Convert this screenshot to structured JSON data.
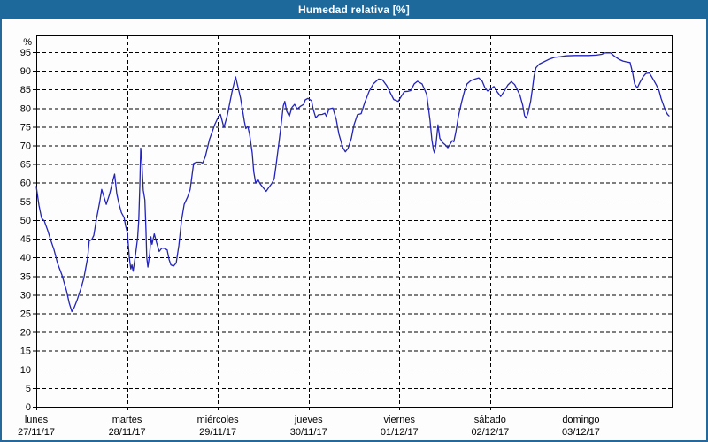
{
  "window": {
    "title": "Humedad relativa [%]"
  },
  "colors": {
    "header_bg": "#1e699c",
    "header_text": "#ffffff",
    "window_border": "#26689a",
    "plot_background": "#fcfdfc",
    "axis": "#000000",
    "grid": "#000000",
    "line": "#2323b8",
    "label_text": "#000000"
  },
  "chart_data": {
    "type": "line",
    "title": "Humedad relativa [%]",
    "ylabel": "%",
    "ylim": [
      0,
      99.5
    ],
    "yticks": [
      0,
      5,
      10,
      15,
      20,
      25,
      30,
      35,
      40,
      45,
      50,
      55,
      60,
      65,
      70,
      75,
      80,
      85,
      90,
      95
    ],
    "grid": true,
    "x_unit": "hours_from_monday_00",
    "xlim": [
      0,
      168
    ],
    "day_tick_hours": [
      0,
      24,
      48,
      72,
      96,
      120,
      144
    ],
    "days": [
      {
        "name": "lunes",
        "date": "27/11/17"
      },
      {
        "name": "martes",
        "date": "28/11/17"
      },
      {
        "name": "miércoles",
        "date": "29/11/17"
      },
      {
        "name": "jueves",
        "date": "30/11/17"
      },
      {
        "name": "viernes",
        "date": "01/12/17"
      },
      {
        "name": "sábado",
        "date": "02/12/17"
      },
      {
        "name": "domingo",
        "date": "03/12/17"
      }
    ],
    "series": [
      {
        "name": "Humedad relativa",
        "color": "#2323b8",
        "points": [
          [
            0,
            59
          ],
          [
            0.7,
            54
          ],
          [
            1.4,
            50.5
          ],
          [
            2.1,
            49.8
          ],
          [
            3,
            47.3
          ],
          [
            3.7,
            45
          ],
          [
            4.7,
            42
          ],
          [
            5.6,
            38.5
          ],
          [
            6.8,
            35.2
          ],
          [
            8,
            31
          ],
          [
            8.7,
            27.8
          ],
          [
            9.4,
            25.5
          ],
          [
            10,
            26.5
          ],
          [
            10.8,
            28.6
          ],
          [
            11.9,
            32
          ],
          [
            12.6,
            34.5
          ],
          [
            13.6,
            40
          ],
          [
            14,
            44.4
          ],
          [
            14.7,
            44.8
          ],
          [
            15.2,
            45.9
          ],
          [
            15.9,
            50.3
          ],
          [
            16.8,
            55
          ],
          [
            17.3,
            58.2
          ],
          [
            18.5,
            54.2
          ],
          [
            19.4,
            57
          ],
          [
            20.1,
            60
          ],
          [
            20.7,
            62.3
          ],
          [
            21.3,
            57
          ],
          [
            21.8,
            54.6
          ],
          [
            22.5,
            52
          ],
          [
            23.2,
            50.7
          ],
          [
            23.6,
            48.5
          ],
          [
            24.1,
            46.5
          ],
          [
            24.6,
            40
          ],
          [
            25,
            36.9
          ],
          [
            25.3,
            38
          ],
          [
            25.6,
            36.3
          ],
          [
            26.2,
            40.5
          ],
          [
            26.8,
            45.2
          ],
          [
            27.1,
            50
          ],
          [
            27.4,
            60
          ],
          [
            27.6,
            69.3
          ],
          [
            27.9,
            66
          ],
          [
            28.3,
            58
          ],
          [
            28.7,
            55.4
          ],
          [
            29,
            47.5
          ],
          [
            29.2,
            40
          ],
          [
            29.5,
            37.4
          ],
          [
            30,
            41
          ],
          [
            30.3,
            45.5
          ],
          [
            30.6,
            43.5
          ],
          [
            31.2,
            46.3
          ],
          [
            31.8,
            44
          ],
          [
            32.5,
            41.6
          ],
          [
            33.2,
            42.5
          ],
          [
            33.9,
            42.4
          ],
          [
            34.6,
            42
          ],
          [
            35.1,
            39.5
          ],
          [
            35.6,
            38
          ],
          [
            36.3,
            37.7
          ],
          [
            37,
            38.5
          ],
          [
            37.7,
            43.2
          ],
          [
            38.4,
            49.9
          ],
          [
            39.1,
            54.2
          ],
          [
            40,
            56.2
          ],
          [
            40.7,
            58.2
          ],
          [
            41.6,
            65.2
          ],
          [
            42.3,
            65.5
          ],
          [
            43.5,
            65.5
          ],
          [
            44,
            65.3
          ],
          [
            44.7,
            67
          ],
          [
            45.8,
            71.6
          ],
          [
            47.2,
            75.6
          ],
          [
            48.2,
            77.8
          ],
          [
            48.7,
            78.3
          ],
          [
            49.6,
            74.8
          ],
          [
            50.5,
            78
          ],
          [
            51.7,
            84.2
          ],
          [
            52.7,
            88.4
          ],
          [
            54,
            82.7
          ],
          [
            55,
            76.5
          ],
          [
            55.4,
            74.5
          ],
          [
            55.9,
            75.2
          ],
          [
            56.4,
            73
          ],
          [
            57.1,
            68
          ],
          [
            57.5,
            63
          ],
          [
            58,
            59.9
          ],
          [
            58.6,
            60.9
          ],
          [
            59.2,
            59.7
          ],
          [
            59.9,
            58.8
          ],
          [
            60.8,
            57.7
          ],
          [
            61.3,
            58.5
          ],
          [
            62.2,
            59.7
          ],
          [
            62.9,
            61
          ],
          [
            63.4,
            64.8
          ],
          [
            64.1,
            70.4
          ],
          [
            64.8,
            76
          ],
          [
            65.3,
            80.6
          ],
          [
            65.7,
            81.8
          ],
          [
            66.2,
            79.2
          ],
          [
            66.9,
            77.8
          ],
          [
            67.6,
            80.2
          ],
          [
            68.3,
            81
          ],
          [
            69,
            79.8
          ],
          [
            70,
            80.6
          ],
          [
            70.7,
            81
          ],
          [
            71.1,
            82.2
          ],
          [
            71.8,
            82.6
          ],
          [
            72.8,
            82
          ],
          [
            73.2,
            79.8
          ],
          [
            73.9,
            77.4
          ],
          [
            74.6,
            78.2
          ],
          [
            75.6,
            78.3
          ],
          [
            76.3,
            78.6
          ],
          [
            76.7,
            77.8
          ],
          [
            77.4,
            79.8
          ],
          [
            78.4,
            80
          ],
          [
            79.3,
            77
          ],
          [
            80,
            73.1
          ],
          [
            81,
            69.5
          ],
          [
            81.7,
            68.3
          ],
          [
            82.4,
            69.2
          ],
          [
            83.3,
            71.9
          ],
          [
            84,
            75.5
          ],
          [
            84.9,
            78.2
          ],
          [
            85.9,
            78.5
          ],
          [
            86.8,
            81.4
          ],
          [
            88,
            84.5
          ],
          [
            89.1,
            86.5
          ],
          [
            90.5,
            87.8
          ],
          [
            91.5,
            87.6
          ],
          [
            92.6,
            86.1
          ],
          [
            93.8,
            83.7
          ],
          [
            94.5,
            82.3
          ],
          [
            95.7,
            81.8
          ],
          [
            96.4,
            83
          ],
          [
            97.3,
            84.4
          ],
          [
            98.3,
            84.5
          ],
          [
            99,
            84.7
          ],
          [
            99.9,
            86.5
          ],
          [
            100.8,
            87.2
          ],
          [
            102,
            86.5
          ],
          [
            102.7,
            84.9
          ],
          [
            103.2,
            83.7
          ],
          [
            103.6,
            80.6
          ],
          [
            104.1,
            76.7
          ],
          [
            104.6,
            71.5
          ],
          [
            105,
            68.8
          ],
          [
            105.3,
            68
          ],
          [
            105.7,
            70.4
          ],
          [
            106.2,
            75.5
          ],
          [
            106.7,
            71.9
          ],
          [
            107.4,
            70.8
          ],
          [
            108.1,
            70.2
          ],
          [
            108.8,
            69.4
          ],
          [
            109.5,
            70.5
          ],
          [
            110,
            71.3
          ],
          [
            110.4,
            71
          ],
          [
            110.9,
            73.5
          ],
          [
            111.6,
            77.8
          ],
          [
            112.5,
            81.8
          ],
          [
            113.2,
            84.5
          ],
          [
            113.9,
            86.5
          ],
          [
            114.9,
            87.4
          ],
          [
            116,
            87.8
          ],
          [
            117,
            88.1
          ],
          [
            117.9,
            87.2
          ],
          [
            118.6,
            85.5
          ],
          [
            119.3,
            84.6
          ],
          [
            120.3,
            85.2
          ],
          [
            121,
            85.8
          ],
          [
            121.9,
            84.3
          ],
          [
            122.8,
            83.1
          ],
          [
            123.7,
            84.5
          ],
          [
            124.7,
            86.2
          ],
          [
            125.6,
            87.1
          ],
          [
            126.5,
            86.3
          ],
          [
            127.2,
            84.9
          ],
          [
            127.9,
            83.4
          ],
          [
            128.6,
            80.8
          ],
          [
            129.1,
            78
          ],
          [
            129.5,
            77.3
          ],
          [
            130,
            78.6
          ],
          [
            130.7,
            81.8
          ],
          [
            131.2,
            85.3
          ],
          [
            131.6,
            88.5
          ],
          [
            132.1,
            90.8
          ],
          [
            133,
            91.8
          ],
          [
            134.2,
            92.4
          ],
          [
            135.4,
            93
          ],
          [
            137,
            93.6
          ],
          [
            138.6,
            93.8
          ],
          [
            140,
            94
          ],
          [
            142.4,
            94.1
          ],
          [
            144,
            94.1
          ],
          [
            146,
            94.1
          ],
          [
            148.1,
            94.2
          ],
          [
            149.5,
            94.4
          ],
          [
            150.4,
            94.8
          ],
          [
            151.8,
            94.8
          ],
          [
            153,
            93.8
          ],
          [
            154.2,
            93
          ],
          [
            155.1,
            92.6
          ],
          [
            156,
            92.4
          ],
          [
            157,
            92.2
          ],
          [
            157.7,
            89.3
          ],
          [
            158.2,
            86.5
          ],
          [
            158.9,
            85.4
          ],
          [
            159.6,
            86.9
          ],
          [
            160.5,
            88.5
          ],
          [
            161.2,
            89.3
          ],
          [
            162.1,
            89.4
          ],
          [
            163.1,
            87.7
          ],
          [
            164,
            86.1
          ],
          [
            164.7,
            84.5
          ],
          [
            165.2,
            82.6
          ],
          [
            165.9,
            80.6
          ],
          [
            166.4,
            79.2
          ],
          [
            166.9,
            78.3
          ],
          [
            167.3,
            77.9
          ]
        ]
      }
    ]
  }
}
